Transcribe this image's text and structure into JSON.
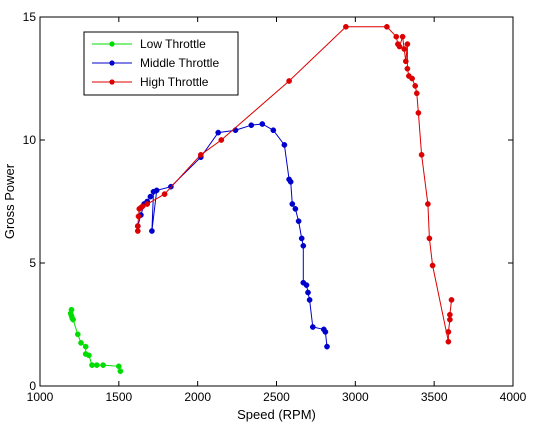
{
  "chart_data": {
    "type": "line",
    "xlabel": "Speed (RPM)",
    "ylabel": "Gross Power",
    "xlim": [
      1000,
      4000
    ],
    "ylim": [
      0,
      15
    ],
    "xticks": [
      1000,
      1500,
      2000,
      2500,
      3000,
      3500,
      4000
    ],
    "yticks": [
      0,
      5,
      10,
      15
    ],
    "grid": false,
    "legend_position": "top-left",
    "series": [
      {
        "name": "Low Throttle",
        "color": "#00dd00",
        "marker": "circle",
        "points": [
          [
            1200,
            3.1
          ],
          [
            1195,
            2.95
          ],
          [
            1200,
            2.85
          ],
          [
            1205,
            2.75
          ],
          [
            1210,
            2.7
          ],
          [
            1240,
            2.1
          ],
          [
            1260,
            1.75
          ],
          [
            1290,
            1.6
          ],
          [
            1290,
            1.3
          ],
          [
            1310,
            1.25
          ],
          [
            1330,
            0.85
          ],
          [
            1360,
            0.85
          ],
          [
            1400,
            0.85
          ],
          [
            1500,
            0.8
          ],
          [
            1510,
            0.6
          ]
        ]
      },
      {
        "name": "Middle Throttle",
        "color": "#0000cc",
        "marker": "circle",
        "points": [
          [
            1620,
            6.5
          ],
          [
            1640,
            6.95
          ],
          [
            1660,
            7.4
          ],
          [
            1680,
            7.5
          ],
          [
            1700,
            7.7
          ],
          [
            1720,
            7.9
          ],
          [
            1710,
            6.3
          ],
          [
            1740,
            7.95
          ],
          [
            1830,
            8.1
          ],
          [
            2020,
            9.3
          ],
          [
            2130,
            10.3
          ],
          [
            2240,
            10.4
          ],
          [
            2340,
            10.6
          ],
          [
            2410,
            10.65
          ],
          [
            2480,
            10.4
          ],
          [
            2550,
            9.8
          ],
          [
            2580,
            8.4
          ],
          [
            2590,
            8.3
          ],
          [
            2600,
            7.4
          ],
          [
            2620,
            7.2
          ],
          [
            2640,
            6.7
          ],
          [
            2660,
            6.0
          ],
          [
            2670,
            5.7
          ],
          [
            2670,
            4.2
          ],
          [
            2690,
            4.1
          ],
          [
            2700,
            3.8
          ],
          [
            2710,
            3.5
          ],
          [
            2730,
            2.4
          ],
          [
            2800,
            2.3
          ],
          [
            2810,
            2.2
          ],
          [
            2820,
            1.6
          ]
        ]
      },
      {
        "name": "High Throttle",
        "color": "#dd0000",
        "marker": "circle",
        "points": [
          [
            1620,
            6.3
          ],
          [
            1620,
            6.5
          ],
          [
            1625,
            6.9
          ],
          [
            1630,
            7.2
          ],
          [
            1640,
            7.25
          ],
          [
            1650,
            7.3
          ],
          [
            1680,
            7.4
          ],
          [
            1790,
            7.8
          ],
          [
            2020,
            9.4
          ],
          [
            2150,
            10.0
          ],
          [
            2580,
            12.4
          ],
          [
            2940,
            14.6
          ],
          [
            3200,
            14.6
          ],
          [
            3260,
            14.2
          ],
          [
            3270,
            13.9
          ],
          [
            3280,
            13.8
          ],
          [
            3300,
            14.2
          ],
          [
            3310,
            13.7
          ],
          [
            3320,
            13.2
          ],
          [
            3330,
            13.9
          ],
          [
            3330,
            12.9
          ],
          [
            3340,
            12.6
          ],
          [
            3360,
            12.5
          ],
          [
            3380,
            12.2
          ],
          [
            3390,
            11.9
          ],
          [
            3400,
            11.1
          ],
          [
            3420,
            9.4
          ],
          [
            3460,
            7.4
          ],
          [
            3470,
            6.0
          ],
          [
            3490,
            4.9
          ],
          [
            3590,
            1.8
          ],
          [
            3590,
            2.2
          ],
          [
            3600,
            2.7
          ],
          [
            3600,
            2.9
          ],
          [
            3610,
            3.5
          ]
        ]
      }
    ]
  }
}
